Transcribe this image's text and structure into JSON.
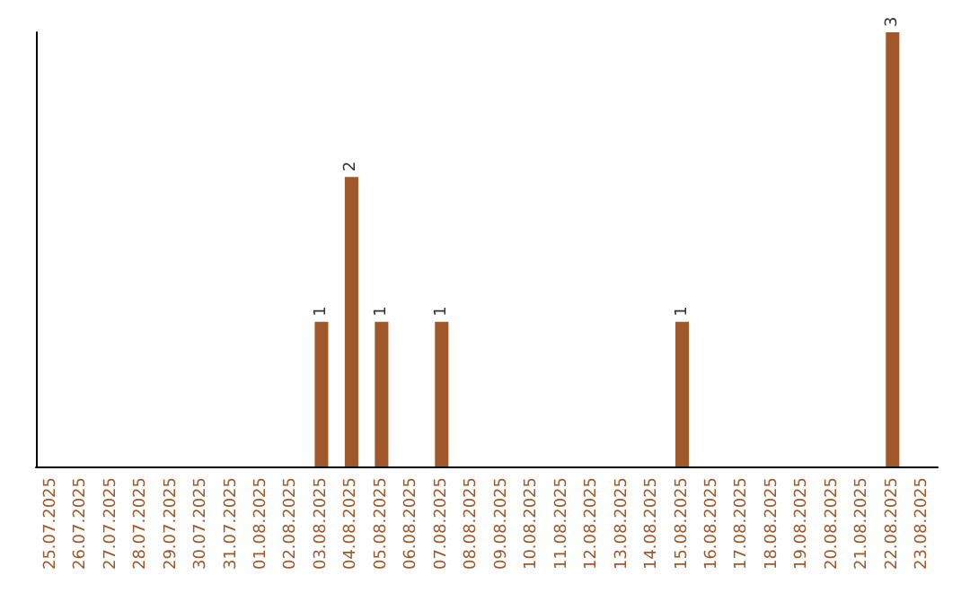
{
  "chart_data": {
    "type": "bar",
    "categories": [
      "25.07.2025",
      "26.07.2025",
      "27.07.2025",
      "28.07.2025",
      "29.07.2025",
      "30.07.2025",
      "31.07.2025",
      "01.08.2025",
      "02.08.2025",
      "03.08.2025",
      "04.08.2025",
      "05.08.2025",
      "06.08.2025",
      "07.08.2025",
      "08.08.2025",
      "09.08.2025",
      "10.08.2025",
      "11.08.2025",
      "12.08.2025",
      "13.08.2025",
      "14.08.2025",
      "15.08.2025",
      "16.08.2025",
      "17.08.2025",
      "18.08.2025",
      "19.08.2025",
      "20.08.2025",
      "21.08.2025",
      "22.08.2025",
      "23.08.2025"
    ],
    "values": [
      0,
      0,
      0,
      0,
      0,
      0,
      0,
      0,
      0,
      1,
      2,
      1,
      0,
      1,
      0,
      0,
      0,
      0,
      0,
      0,
      0,
      1,
      0,
      0,
      0,
      0,
      0,
      0,
      3,
      0
    ],
    "value_labels": [
      null,
      null,
      null,
      null,
      null,
      null,
      null,
      null,
      null,
      "1",
      "2",
      "1",
      null,
      "1",
      null,
      null,
      null,
      null,
      null,
      null,
      null,
      "1",
      null,
      null,
      null,
      null,
      null,
      null,
      "3",
      null
    ],
    "color": "#a0582a",
    "tick_labels": "x"
  }
}
